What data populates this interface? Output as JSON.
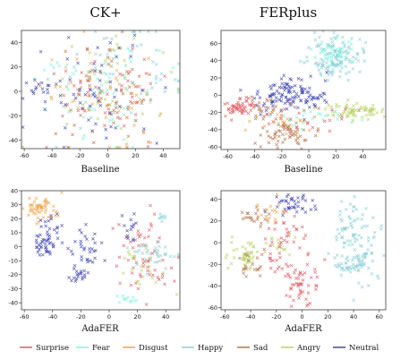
{
  "columns": [
    "CK+",
    "FERplus"
  ],
  "legend": {
    "items": [
      {
        "name": "Surprise",
        "color": "#e05a63"
      },
      {
        "name": "Fear",
        "color": "#7ff5dc"
      },
      {
        "name": "Disgust",
        "color": "#f0a64a"
      },
      {
        "name": "Happy",
        "color": "#8ccfd6"
      },
      {
        "name": "Sad",
        "color": "#b5734a"
      },
      {
        "name": "Angry",
        "color": "#b9d26a"
      },
      {
        "name": "Neutral",
        "color": "#4045b0"
      }
    ]
  },
  "chart_data": [
    {
      "type": "scatter",
      "title": "CK+",
      "xlabel": "Baseline",
      "xlim": [
        -62,
        52
      ],
      "ylim": [
        -47,
        50
      ],
      "xticks": [
        -60,
        -40,
        -20,
        0,
        20,
        40
      ],
      "yticks": [
        -40,
        -20,
        0,
        20,
        40
      ],
      "clusters": [
        {
          "series": "Surprise",
          "cx": 0,
          "cy": 0,
          "sx": 22,
          "sy": 20,
          "n": 55
        },
        {
          "series": "Fear",
          "cx": 5,
          "cy": 5,
          "sx": 24,
          "sy": 22,
          "n": 55
        },
        {
          "series": "Disgust",
          "cx": -5,
          "cy": -5,
          "sx": 22,
          "sy": 20,
          "n": 55
        },
        {
          "series": "Happy",
          "cx": 10,
          "cy": 10,
          "sx": 24,
          "sy": 22,
          "n": 55
        },
        {
          "series": "Sad",
          "cx": 0,
          "cy": -10,
          "sx": 22,
          "sy": 20,
          "n": 50
        },
        {
          "series": "Angry",
          "cx": 5,
          "cy": 10,
          "sx": 22,
          "sy": 20,
          "n": 50
        },
        {
          "series": "Neutral",
          "cx": -10,
          "cy": 0,
          "sx": 24,
          "sy": 22,
          "n": 60
        },
        {
          "series": "Neutral",
          "cx": -50,
          "cy": 3,
          "sx": 6,
          "sy": 4,
          "n": 14
        },
        {
          "series": "Fear",
          "cx": -40,
          "cy": 22,
          "sx": 3,
          "sy": 2,
          "n": 5
        }
      ]
    },
    {
      "type": "scatter",
      "title": "FERplus",
      "xlabel": "Baseline",
      "xlim": [
        -65,
        57
      ],
      "ylim": [
        -63,
        75
      ],
      "xticks": [
        -60,
        -40,
        -20,
        0,
        20,
        40
      ],
      "yticks": [
        -60,
        -40,
        -20,
        0,
        20,
        40,
        60
      ],
      "clusters": [
        {
          "series": "Happy",
          "cx": 20,
          "cy": 45,
          "sx": 9,
          "sy": 12,
          "n": 130
        },
        {
          "series": "Fear",
          "cx": 18,
          "cy": 48,
          "sx": 8,
          "sy": 10,
          "n": 40
        },
        {
          "series": "Neutral",
          "cx": -15,
          "cy": 2,
          "sx": 14,
          "sy": 10,
          "n": 120
        },
        {
          "series": "Surprise",
          "cx": -50,
          "cy": -15,
          "sx": 6,
          "sy": 5,
          "n": 45
        },
        {
          "series": "Sad",
          "cx": -35,
          "cy": -15,
          "sx": 10,
          "sy": 8,
          "n": 30
        },
        {
          "series": "Sad",
          "cx": -15,
          "cy": -45,
          "sx": 10,
          "sy": 7,
          "n": 60
        },
        {
          "series": "Angry",
          "cx": 35,
          "cy": -18,
          "sx": 12,
          "sy": 5,
          "n": 70
        },
        {
          "series": "Fear",
          "cx": 0,
          "cy": -25,
          "sx": 20,
          "sy": 8,
          "n": 25
        },
        {
          "series": "Surprise",
          "cx": 0,
          "cy": -25,
          "sx": 25,
          "sy": 10,
          "n": 25
        },
        {
          "series": "Disgust",
          "cx": -20,
          "cy": -35,
          "sx": 12,
          "sy": 8,
          "n": 20
        }
      ]
    },
    {
      "type": "scatter",
      "title": "",
      "xlabel": "AdaFER",
      "xlim": [
        -62,
        50
      ],
      "ylim": [
        -45,
        40
      ],
      "xticks": [
        -60,
        -40,
        -20,
        0,
        20,
        40
      ],
      "yticks": [
        -40,
        -30,
        -20,
        -10,
        0,
        10,
        20,
        30,
        40
      ],
      "clusters": [
        {
          "series": "Disgust",
          "cx": -48,
          "cy": 27,
          "sx": 6,
          "sy": 5,
          "n": 55
        },
        {
          "series": "Neutral",
          "cx": -42,
          "cy": 12,
          "sx": 5,
          "sy": 6,
          "n": 25
        },
        {
          "series": "Neutral",
          "cx": -45,
          "cy": 0,
          "sx": 5,
          "sy": 6,
          "n": 30
        },
        {
          "series": "Neutral",
          "cx": -18,
          "cy": -2,
          "sx": 7,
          "sy": 8,
          "n": 35
        },
        {
          "series": "Neutral",
          "cx": -22,
          "cy": -20,
          "sx": 3,
          "sy": 3,
          "n": 18
        },
        {
          "series": "Neutral",
          "cx": 15,
          "cy": 15,
          "sx": 3,
          "sy": 6,
          "n": 15
        },
        {
          "series": "Surprise",
          "cx": 25,
          "cy": -8,
          "sx": 10,
          "sy": 14,
          "n": 60
        },
        {
          "series": "Angry",
          "cx": 22,
          "cy": -15,
          "sx": 8,
          "sy": 8,
          "n": 25
        },
        {
          "series": "Happy",
          "cx": 35,
          "cy": -5,
          "sx": 8,
          "sy": 5,
          "n": 35
        },
        {
          "series": "Fear",
          "cx": 12,
          "cy": -38,
          "sx": 4,
          "sy": 2,
          "n": 12
        },
        {
          "series": "Happy",
          "cx": 38,
          "cy": 20,
          "sx": 3,
          "sy": 2,
          "n": 8
        }
      ]
    },
    {
      "type": "scatter",
      "title": "",
      "xlabel": "AdaFER",
      "xlim": [
        -63,
        65
      ],
      "ylim": [
        -62,
        48
      ],
      "xticks": [
        -60,
        -40,
        -20,
        0,
        20,
        40,
        60
      ],
      "yticks": [
        -60,
        -40,
        -20,
        0,
        20,
        40
      ],
      "clusters": [
        {
          "series": "Happy",
          "cx": 42,
          "cy": 0,
          "sx": 8,
          "sy": 22,
          "n": 110
        },
        {
          "series": "Happy",
          "cx": 35,
          "cy": -22,
          "sx": 8,
          "sy": 3,
          "n": 30
        },
        {
          "series": "Surprise",
          "cx": 0,
          "cy": -38,
          "sx": 6,
          "sy": 12,
          "n": 50
        },
        {
          "series": "Surprise",
          "cx": -10,
          "cy": 10,
          "sx": 10,
          "sy": 10,
          "n": 30
        },
        {
          "series": "Angry",
          "cx": -45,
          "cy": -12,
          "sx": 6,
          "sy": 7,
          "n": 45
        },
        {
          "series": "Sad",
          "cx": -40,
          "cy": -20,
          "sx": 5,
          "sy": 5,
          "n": 20
        },
        {
          "series": "Neutral",
          "cx": -8,
          "cy": 35,
          "sx": 8,
          "sy": 5,
          "n": 40
        },
        {
          "series": "Sad",
          "cx": -38,
          "cy": 25,
          "sx": 6,
          "sy": 4,
          "n": 20
        },
        {
          "series": "Disgust",
          "cx": -25,
          "cy": 30,
          "sx": 6,
          "sy": 5,
          "n": 15
        },
        {
          "series": "Angry",
          "cx": -15,
          "cy": 0,
          "sx": 6,
          "sy": 6,
          "n": 15
        },
        {
          "series": "Surprise",
          "cx": -20,
          "cy": -15,
          "sx": 5,
          "sy": 8,
          "n": 20
        }
      ]
    }
  ]
}
